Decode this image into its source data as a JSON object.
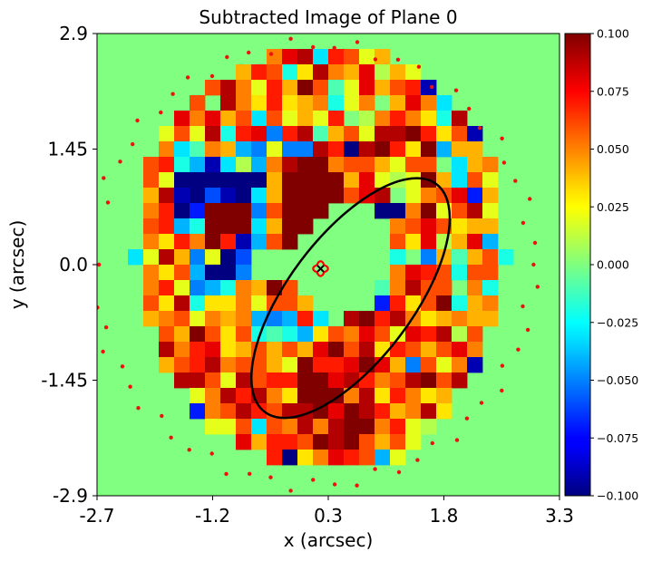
{
  "chart_data": {
    "type": "heatmap",
    "title": "Subtracted Image of Plane 0",
    "xlabel": "x (arcsec)",
    "ylabel": "y (arcsec)",
    "x_ticks": [
      "-2.7",
      "-1.2",
      "0.3",
      "1.8",
      "3.3"
    ],
    "y_ticks": [
      "2.9",
      "1.45",
      "0.0",
      "-1.45",
      "-2.9"
    ],
    "xlim": [
      -2.7,
      3.3
    ],
    "ylim": [
      -2.9,
      2.9
    ],
    "colorbar": {
      "colormap": "jet",
      "vmin": -0.1,
      "vmax": 0.1,
      "ticks": [
        "0.100",
        "0.075",
        "0.050",
        "0.025",
        "0.000",
        "−0.025",
        "−0.050",
        "−0.075",
        "−0.100"
      ]
    },
    "grid": false,
    "pixel_grid": {
      "n": 30,
      "mask_radius_px": 14.6,
      "values": [
        [
          0,
          0,
          0,
          0,
          0,
          0,
          0,
          0,
          0,
          0,
          0,
          0,
          0,
          0,
          0,
          0,
          0,
          0,
          0,
          0,
          0,
          0,
          0,
          0,
          0,
          0,
          0,
          0,
          0,
          0
        ],
        [
          0,
          0,
          0,
          0,
          0,
          0,
          0,
          0,
          0,
          0,
          0,
          0.05,
          0.08,
          0.09,
          -0.03,
          0.07,
          0.06,
          0.02,
          0.04,
          0.0,
          0,
          0,
          0,
          0,
          0,
          0,
          0,
          0,
          0,
          0
        ],
        [
          0,
          0,
          0,
          0,
          0,
          0,
          0,
          0,
          0,
          0.04,
          0.07,
          0.06,
          -0.02,
          0.03,
          0.09,
          0.05,
          0.04,
          0.08,
          0.01,
          0.04,
          0.02,
          0,
          0,
          0,
          0,
          0,
          0,
          0,
          0,
          0
        ],
        [
          0,
          0,
          0,
          0,
          0,
          0,
          0,
          0.06,
          0.09,
          0.05,
          0.02,
          0.07,
          0.04,
          0.1,
          0.06,
          -0.01,
          0.02,
          0.08,
          0.04,
          0.06,
          0.07,
          -0.09,
          0,
          0,
          0,
          0,
          0,
          0,
          0,
          0
        ],
        [
          0,
          0,
          0,
          0,
          0,
          0,
          0.06,
          0.0,
          0.09,
          0.05,
          0.03,
          0.07,
          0.03,
          0.04,
          0.05,
          -0.02,
          0.02,
          0.05,
          0.0,
          0.04,
          0.08,
          0.05,
          -0.03,
          0,
          0,
          0,
          0,
          0,
          0,
          0
        ],
        [
          0,
          0,
          0,
          0,
          0,
          0.08,
          0.05,
          0.08,
          0.04,
          0.06,
          -0.03,
          0.06,
          0.02,
          0.04,
          0.02,
          0.07,
          0.0,
          0.01,
          0.05,
          0.07,
          0.05,
          0.03,
          -0.02,
          0.09,
          0,
          0,
          0,
          0,
          0,
          0
        ],
        [
          0,
          0,
          0,
          0,
          0.02,
          0.06,
          0.02,
          0.09,
          -0.02,
          0.07,
          0.08,
          -0.05,
          0.07,
          0.09,
          -0.01,
          0.04,
          0.06,
          0.02,
          0.09,
          0.09,
          0.1,
          0.07,
          0.03,
          0.06,
          -0.09,
          0,
          0,
          0,
          0,
          0
        ],
        [
          0,
          0,
          0,
          0,
          0.05,
          -0.03,
          -0.01,
          0.05,
          0.04,
          -0.04,
          -0.05,
          0.02,
          -0.05,
          -0.05,
          0.09,
          0.07,
          -0.1,
          0.09,
          0.1,
          0.07,
          0.03,
          0.1,
          -0.04,
          0.04,
          0.04,
          0,
          0,
          0,
          0,
          0
        ],
        [
          0,
          0,
          0,
          0.06,
          0.07,
          -0.02,
          -0.04,
          -0.09,
          -0.03,
          0.01,
          -0.04,
          0.05,
          0.09,
          0.1,
          0.1,
          0.05,
          0.06,
          0.06,
          0.04,
          0.02,
          0.06,
          0.06,
          0.0,
          -0.03,
          0.04,
          0.05,
          0,
          0,
          0,
          0
        ],
        [
          0,
          0,
          0,
          0.06,
          0.02,
          -0.1,
          -0.1,
          -0.1,
          -0.1,
          -0.1,
          -0.1,
          0.04,
          0.1,
          0.1,
          0.1,
          0.1,
          0.04,
          0.08,
          0.02,
          0.01,
          0.02,
          0.1,
          0.04,
          -0.03,
          0.06,
          0.02,
          0,
          0,
          0,
          0
        ],
        [
          0,
          0,
          0,
          0.04,
          0.09,
          -0.09,
          -0.1,
          -0.06,
          -0.09,
          -0.1,
          -0.03,
          0.04,
          0.1,
          0.1,
          0.1,
          0.1,
          0.06,
          0.08,
          0.09,
          0.0,
          0.02,
          0.05,
          0.06,
          0.08,
          -0.07,
          0.04,
          0,
          0,
          0,
          0
        ],
        [
          0,
          0,
          0,
          0.05,
          0.07,
          -0.1,
          -0.07,
          0.1,
          0.1,
          0.1,
          -0.05,
          0.06,
          0.1,
          0.1,
          0.1,
          0,
          0,
          0,
          -0.1,
          -0.1,
          0.05,
          0.1,
          0.02,
          0.06,
          0.09,
          0.02,
          0,
          0,
          0,
          0
        ],
        [
          0,
          0,
          0,
          0.06,
          0.07,
          -0.04,
          -0.02,
          0.1,
          0.1,
          0.1,
          -0.03,
          0.04,
          0.1,
          0.1,
          0,
          0,
          0,
          0,
          0,
          0.05,
          0.06,
          0.08,
          0.06,
          0.03,
          0.04,
          0.04,
          0,
          0,
          0,
          0
        ],
        [
          0,
          0,
          0,
          0.05,
          0.03,
          0.07,
          0.05,
          0.1,
          0.07,
          -0.09,
          -0.04,
          0.06,
          0.1,
          0,
          0,
          0,
          0,
          0,
          0,
          0.06,
          0.03,
          0.08,
          0.01,
          0.04,
          0.08,
          -0.04,
          0,
          0,
          0,
          0
        ],
        [
          0,
          0,
          -0.03,
          0.02,
          0.09,
          0.04,
          -0.05,
          0.02,
          -0.1,
          -0.06,
          0,
          0,
          0,
          0,
          0,
          0,
          0,
          0,
          0,
          -0.02,
          0.0,
          -0.05,
          0.04,
          -0.01,
          0.04,
          0.06,
          -0.02,
          0,
          0,
          0
        ],
        [
          0,
          0,
          0,
          0.05,
          0.03,
          0.06,
          -0.04,
          -0.1,
          -0.1,
          -0.05,
          0,
          0,
          0,
          0,
          0,
          0,
          0,
          0,
          0,
          0.05,
          0.08,
          0.07,
          0.06,
          -0.02,
          0.06,
          0.06,
          0,
          0,
          0,
          0
        ],
        [
          0,
          0,
          0,
          0.05,
          0.07,
          0.02,
          -0.05,
          -0.04,
          -0.02,
          0.05,
          0.04,
          0.1,
          0.06,
          0,
          0,
          0,
          0,
          0,
          -0.01,
          0.05,
          0.09,
          0.06,
          0.06,
          0.0,
          0.05,
          -0.02,
          0,
          0,
          0,
          0
        ],
        [
          0,
          0,
          0,
          0.06,
          0.03,
          0.09,
          -0.02,
          0.03,
          0.03,
          0.05,
          0.02,
          0.06,
          0.06,
          0.04,
          0,
          0,
          0,
          0,
          -0.07,
          0.07,
          0.03,
          0.06,
          0.1,
          -0.02,
          0.04,
          0.05,
          0,
          0,
          0,
          0
        ],
        [
          0,
          0,
          0,
          0.04,
          0.05,
          0.06,
          0.02,
          0.05,
          0.04,
          0.05,
          -0.04,
          -0.05,
          -0.04,
          0.07,
          -0.03,
          0,
          0.09,
          0.1,
          0.07,
          0.09,
          0.05,
          0.03,
          0.04,
          0.05,
          0.04,
          0.04,
          0,
          0,
          0,
          0
        ],
        [
          0,
          0,
          0,
          0,
          0.06,
          0.04,
          0.1,
          0.06,
          0.03,
          0.06,
          -0.02,
          -0.01,
          -0.02,
          -0.04,
          0.03,
          0.06,
          0.05,
          0.08,
          0.06,
          0.02,
          0.08,
          0.07,
          0.09,
          0.01,
          0.06,
          0,
          0,
          0,
          0,
          0
        ],
        [
          0,
          0,
          0,
          0,
          0.09,
          0.05,
          0.07,
          0.08,
          0.03,
          0.04,
          0.06,
          0.04,
          0.06,
          0.04,
          0.08,
          0.1,
          0.06,
          0.09,
          0.03,
          0.07,
          0.06,
          0.04,
          0.06,
          0.08,
          0.05,
          0,
          0,
          0,
          0,
          0
        ],
        [
          0,
          0,
          0,
          0,
          0.04,
          0.06,
          0.07,
          0.09,
          0.05,
          0.06,
          0.06,
          0.04,
          0.02,
          0.1,
          0.07,
          0.07,
          0.08,
          0.1,
          0.08,
          0.04,
          -0.05,
          0.06,
          0.02,
          0.05,
          -0.09,
          0,
          0,
          0,
          0,
          0
        ],
        [
          0,
          0,
          0,
          0,
          0,
          0.09,
          0.09,
          0.06,
          0.02,
          0.09,
          0.06,
          0.07,
          0.07,
          0.1,
          0.1,
          0.08,
          0.09,
          0.07,
          0.05,
          0.06,
          0.09,
          0.1,
          0.06,
          0.09,
          0,
          0,
          0,
          0,
          0,
          0
        ],
        [
          0,
          0,
          0,
          0,
          0,
          0,
          0.02,
          0.05,
          0.09,
          0.07,
          0.09,
          0.05,
          0.03,
          0.1,
          0.1,
          0.1,
          0.05,
          0.09,
          0.03,
          0.07,
          0.05,
          0.03,
          0.04,
          0,
          0,
          0,
          0,
          0,
          0,
          0
        ],
        [
          0,
          0,
          0,
          0,
          0,
          0,
          -0.07,
          0.05,
          0.06,
          0.09,
          0.07,
          0.06,
          0.09,
          0.09,
          0.1,
          0.08,
          0.1,
          0.09,
          0.07,
          0.04,
          0.05,
          0.09,
          0.03,
          0,
          0,
          0,
          0,
          0,
          0,
          0
        ],
        [
          0,
          0,
          0,
          0,
          0,
          0,
          0,
          0.02,
          0.02,
          0.06,
          -0.03,
          0.06,
          0.05,
          0.09,
          0.05,
          0.09,
          0.1,
          0.1,
          0.05,
          0.07,
          0.02,
          0.01,
          0,
          0,
          0,
          0,
          0,
          0,
          0,
          0
        ],
        [
          0,
          0,
          0,
          0,
          0,
          0,
          0,
          0,
          0,
          0.08,
          0.04,
          0.07,
          0.07,
          0.06,
          0.1,
          0.09,
          0.1,
          0.06,
          0.04,
          0.06,
          0.02,
          0,
          0,
          0,
          0,
          0,
          0,
          0,
          0,
          0
        ],
        [
          0,
          0,
          0,
          0,
          0,
          0,
          0,
          0,
          0,
          0,
          0,
          0.07,
          -0.1,
          0.03,
          0.05,
          0.08,
          0.07,
          0.06,
          -0.04,
          0.02,
          0,
          0,
          0,
          0,
          0,
          0,
          0,
          0,
          0,
          0
        ],
        [
          0,
          0,
          0,
          0,
          0,
          0,
          0,
          0,
          0,
          0,
          0,
          0,
          0,
          0,
          0,
          0,
          0,
          0,
          0,
          0,
          0,
          0,
          0,
          0,
          0,
          0,
          0,
          0,
          0,
          0
        ],
        [
          0,
          0,
          0,
          0,
          0,
          0,
          0,
          0,
          0,
          0,
          0,
          0,
          0,
          0,
          0,
          0,
          0,
          0,
          0,
          0,
          0,
          0,
          0,
          0,
          0,
          0,
          0,
          0,
          0,
          0
        ]
      ]
    },
    "border_points": "red dots along the circular mask edge",
    "ellipse": {
      "center": [
        0.59,
        -0.42
      ],
      "semi_major": 1.85,
      "semi_minor": 0.78,
      "angle_deg": 53,
      "color": "black"
    },
    "critical_curve": {
      "center": [
        0.2,
        -0.05
      ],
      "color": "red"
    },
    "center_marker": {
      "x": 0.2,
      "y": -0.05,
      "symbol": "x"
    }
  }
}
